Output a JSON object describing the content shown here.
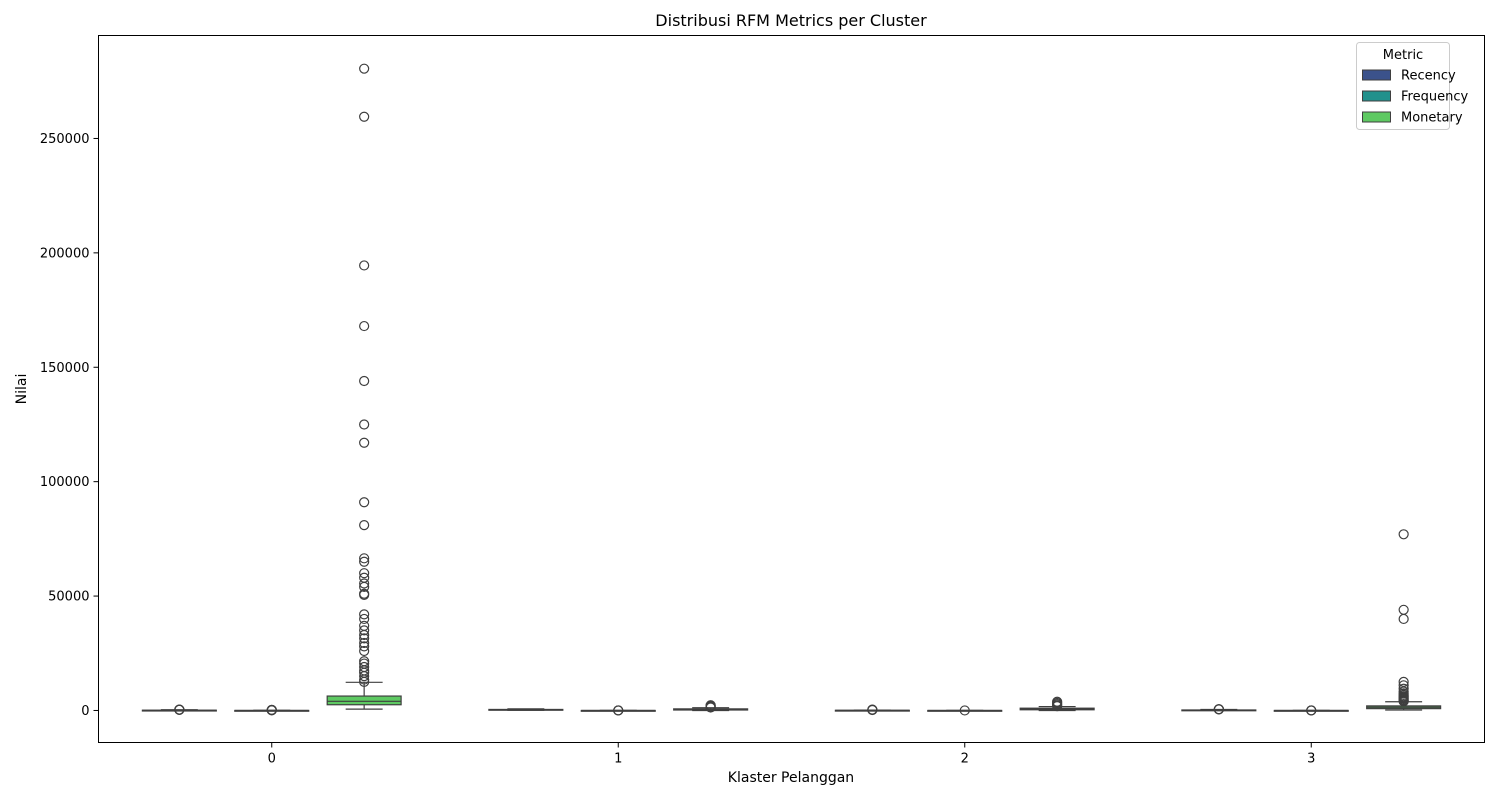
{
  "chart_data": {
    "type": "box",
    "title": "Distribusi RFM Metrics per Cluster",
    "xlabel": "Klaster Pelanggan",
    "ylabel": "Nilai",
    "categories": [
      "0",
      "1",
      "2",
      "3"
    ],
    "ylim": [
      -14000,
      295000
    ],
    "yticks": [
      0,
      50000,
      100000,
      150000,
      200000,
      250000
    ],
    "ytick_labels": [
      "0",
      "50000",
      "100000",
      "150000",
      "200000",
      "250000"
    ],
    "grid": false,
    "legend": {
      "title": "Metric",
      "placement": "top-right",
      "entries": [
        "Recency",
        "Frequency",
        "Monetary"
      ]
    },
    "series": [
      {
        "name": "Recency",
        "color": "#3b528b",
        "boxes": [
          {
            "whisker_low": 0,
            "q1": 10,
            "median": 40,
            "q3": 120,
            "whisker_high": 300,
            "outliers": [
              310,
              330,
              350,
              370
            ]
          },
          {
            "whisker_low": 100,
            "q1": 250,
            "median": 350,
            "q3": 450,
            "whisker_high": 700,
            "outliers": []
          },
          {
            "whisker_low": 0,
            "q1": 15,
            "median": 35,
            "q3": 80,
            "whisker_high": 180,
            "outliers": [
              220,
              300,
              380
            ]
          },
          {
            "whisker_low": 10,
            "q1": 60,
            "median": 120,
            "q3": 220,
            "whisker_high": 450,
            "outliers": [
              480,
              520,
              560
            ]
          }
        ]
      },
      {
        "name": "Frequency",
        "color": "#21918c",
        "boxes": [
          {
            "whisker_low": 1,
            "q1": 3,
            "median": 6,
            "q3": 12,
            "whisker_high": 25,
            "outliers": [
              60,
              120,
              200,
              250
            ]
          },
          {
            "whisker_low": 1,
            "q1": 1,
            "median": 2,
            "q3": 3,
            "whisker_high": 5,
            "outliers": [
              8,
              12,
              20
            ]
          },
          {
            "whisker_low": 1,
            "q1": 2,
            "median": 3,
            "q3": 5,
            "whisker_high": 9,
            "outliers": [
              15
            ]
          },
          {
            "whisker_low": 1,
            "q1": 1,
            "median": 2,
            "q3": 3,
            "whisker_high": 6,
            "outliers": [
              9,
              14,
              20
            ]
          }
        ]
      },
      {
        "name": "Monetary",
        "color": "#5ec962",
        "boxes": [
          {
            "whisker_low": 600,
            "q1": 2500,
            "median": 4000,
            "q3": 6300,
            "whisker_high": 12300,
            "outliers": [
              12500,
              13500,
              15000,
              16500,
              17500,
              19000,
              20500,
              21500,
              26000,
              28000,
              29500,
              31500,
              33000,
              35000,
              37000,
              40000,
              42000,
              50500,
              51000,
              54000,
              55500,
              58000,
              60000,
              65000,
              66500,
              81000,
              91000,
              117000,
              125000,
              144000,
              168000,
              194500,
              259500,
              280500
            ]
          },
          {
            "whisker_low": 0,
            "q1": 200,
            "median": 400,
            "q3": 700,
            "whisker_high": 1200,
            "outliers": [
              1300,
              1500,
              1800,
              2000,
              2300
            ]
          },
          {
            "whisker_low": 0,
            "q1": 300,
            "median": 600,
            "q3": 1000,
            "whisker_high": 1700,
            "outliers": [
              1900,
              2300,
              2800,
              3300,
              3800
            ]
          },
          {
            "whisker_low": 200,
            "q1": 800,
            "median": 1400,
            "q3": 2000,
            "whisker_high": 3800,
            "outliers": [
              4000,
              4300,
              4600,
              5000,
              5400,
              5800,
              6200,
              6800,
              7500,
              8300,
              9500,
              11000,
              12500,
              40000,
              44000,
              77000
            ]
          }
        ]
      }
    ]
  }
}
